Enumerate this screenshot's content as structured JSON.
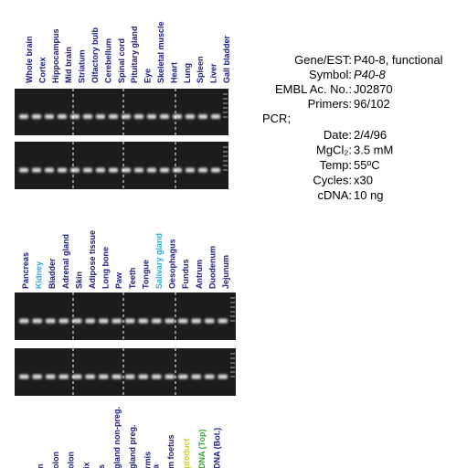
{
  "gels": [
    {
      "labels": [
        {
          "text": "Whole brain",
          "color": "#1a1a80"
        },
        {
          "text": "Cortex",
          "color": "#1a1a80"
        },
        {
          "text": "Hippocampus",
          "color": "#1a1a80"
        },
        {
          "text": "Mid brain",
          "color": "#1a1a80"
        },
        {
          "text": "Striatum",
          "color": "#1a1a80"
        },
        {
          "text": "Olfactory bulb",
          "color": "#1a1a80"
        },
        {
          "text": "Cerebellum",
          "color": "#1a1a80"
        },
        {
          "text": "Spinal cord",
          "color": "#1a1a80"
        },
        {
          "text": "Pituitary gland",
          "color": "#1a1a80"
        },
        {
          "text": "Eye",
          "color": "#1a1a80"
        },
        {
          "text": "Skeletal muscle",
          "color": "#1a1a80"
        },
        {
          "text": "Heart",
          "color": "#1a1a80"
        },
        {
          "text": "Lung",
          "color": "#1a1a80"
        },
        {
          "text": "Spleen",
          "color": "#1a1a80"
        },
        {
          "text": "Liver",
          "color": "#1a1a80"
        },
        {
          "text": "Gall bladder",
          "color": "#1a1a80"
        }
      ]
    },
    {
      "labels": [
        {
          "text": "Pancreas",
          "color": "#1a1a80"
        },
        {
          "text": "Kidney",
          "color": "#33aacc"
        },
        {
          "text": "Bladder",
          "color": "#1a1a80"
        },
        {
          "text": "Adrenal gland",
          "color": "#1a1a80"
        },
        {
          "text": "Skin",
          "color": "#1a1a80"
        },
        {
          "text": "Adipose tissue",
          "color": "#1a1a80"
        },
        {
          "text": "Long bone",
          "color": "#1a1a80"
        },
        {
          "text": "Paw",
          "color": "#1a1a80"
        },
        {
          "text": "Teeth",
          "color": "#1a1a80"
        },
        {
          "text": "Tongue",
          "color": "#1a1a80"
        },
        {
          "text": "Salivary gland",
          "color": "#33aacc"
        },
        {
          "text": "Oesophagus",
          "color": "#1a1a80"
        },
        {
          "text": "Fundus",
          "color": "#1a1a80"
        },
        {
          "text": "Antrum",
          "color": "#1a1a80"
        },
        {
          "text": "Duodenum",
          "color": "#1a1a80"
        },
        {
          "text": "Jejunum",
          "color": "#1a1a80"
        }
      ]
    },
    {
      "labels": [
        {
          "text": "n",
          "color": "#1a1a80"
        },
        {
          "text": "olon",
          "color": "#1a1a80"
        },
        {
          "text": "olon",
          "color": "#1a1a80"
        },
        {
          "text": "ix",
          "color": "#1a1a80"
        },
        {
          "text": "s",
          "color": "#1a1a80"
        },
        {
          "text": "gland non-preg.",
          "color": "#1a1a80"
        },
        {
          "text": "gland preg.",
          "color": "#1a1a80"
        },
        {
          "text": "rmis",
          "color": "#1a1a80"
        },
        {
          "text": "a",
          "color": "#1a1a80"
        },
        {
          "text": "m foetus",
          "color": "#1a1a80"
        },
        {
          "text": "product",
          "color": "#cccc33"
        },
        {
          "text": "DNA (Top)",
          "color": "#33aa33"
        },
        {
          "text": "DNA (Bot.)",
          "color": "#1a1a80"
        }
      ]
    }
  ],
  "info": {
    "rows": [
      {
        "label": "Gene/EST:",
        "value": "P40-8, functional"
      },
      {
        "label": "Symbol:",
        "value": "P40-8"
      },
      {
        "label": "EMBL Ac. No.:",
        "value": "J02870"
      },
      {
        "label": "Primers:",
        "value": "96/102"
      }
    ],
    "pcr_heading": "PCR;",
    "pcr_rows": [
      {
        "label": "Date:",
        "value": "2/4/96"
      },
      {
        "label": "MgCl₂:",
        "value": "3.5 mM"
      },
      {
        "label": "Temp:",
        "value": "55ºC"
      },
      {
        "label": "Cycles:",
        "value": "x30"
      },
      {
        "label": "cDNA:",
        "value": "10 ng"
      }
    ]
  }
}
